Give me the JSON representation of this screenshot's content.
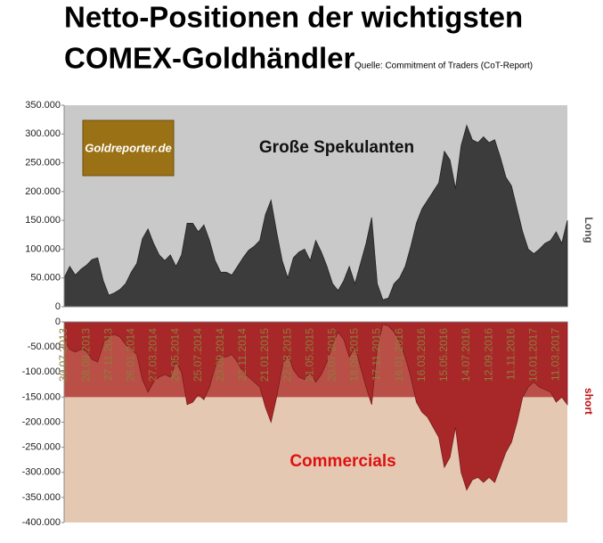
{
  "title": [
    "Netto-Positionen der wichtigsten",
    "COMEX-Goldhändler"
  ],
  "source": "Quelle: Commitment of Traders (CoT-Report)",
  "logo": "Goldreporter.de",
  "chart_data": [
    {
      "type": "area",
      "annotation": "Große Spekulanten",
      "y_label": "Long",
      "color": "#3c3c3c",
      "background": "#c9c9c9",
      "ylim": [
        0,
        350000
      ],
      "yticks": [
        {
          "value": 0,
          "label": "0"
        },
        {
          "value": 50000,
          "label": "50.000"
        },
        {
          "value": 100000,
          "label": "100.000"
        },
        {
          "value": 150000,
          "label": "150.000"
        },
        {
          "value": 200000,
          "label": "200.000"
        },
        {
          "value": 250000,
          "label": "250.000"
        },
        {
          "value": 300000,
          "label": "300.000"
        },
        {
          "value": 350000,
          "label": "350.000"
        }
      ],
      "values": [
        50000,
        70000,
        55000,
        65000,
        72000,
        82000,
        85000,
        45000,
        20000,
        24000,
        30000,
        40000,
        60000,
        75000,
        118000,
        135000,
        110000,
        90000,
        80000,
        90000,
        70000,
        90000,
        145000,
        145000,
        130000,
        142000,
        115000,
        80000,
        60000,
        60000,
        55000,
        70000,
        85000,
        98000,
        105000,
        115000,
        160000,
        185000,
        130000,
        80000,
        50000,
        85000,
        95000,
        100000,
        80000,
        115000,
        95000,
        70000,
        40000,
        28000,
        45000,
        70000,
        40000,
        75000,
        110000,
        155000,
        40000,
        12000,
        15000,
        40000,
        50000,
        70000,
        105000,
        145000,
        170000,
        185000,
        200000,
        215000,
        270000,
        255000,
        205000,
        280000,
        315000,
        290000,
        285000,
        295000,
        285000,
        290000,
        260000,
        225000,
        210000,
        170000,
        130000,
        100000,
        92000,
        100000,
        110000,
        115000,
        130000,
        110000,
        150000
      ]
    },
    {
      "type": "area",
      "annotation": "Commercials",
      "y_label": "short",
      "color": "#a8282a",
      "background": "#e4c8b2",
      "ylim": [
        -400000,
        0
      ],
      "yticks": [
        {
          "value": -400000,
          "label": "-400.000"
        },
        {
          "value": -350000,
          "label": "-350.000"
        },
        {
          "value": -300000,
          "label": "-300.000"
        },
        {
          "value": -250000,
          "label": "-250.000"
        },
        {
          "value": -200000,
          "label": "-200.000"
        },
        {
          "value": -150000,
          "label": "-150.000"
        },
        {
          "value": -100000,
          "label": "-100.000"
        },
        {
          "value": -50000,
          "label": "-50.000"
        },
        0
      ],
      "categories": [
        "30.07.2013",
        null,
        null,
        null,
        "28.09.2013",
        null,
        null,
        null,
        "27.11.2013",
        null,
        null,
        null,
        "26.01.2014",
        null,
        null,
        null,
        "27.03.2014",
        null,
        null,
        null,
        "26.05.2014",
        null,
        null,
        null,
        "25.07.2014",
        null,
        null,
        null,
        "23.09.2014",
        null,
        null,
        null,
        "22.11.2014",
        null,
        null,
        null,
        "21.01.2015",
        null,
        null,
        null,
        "22.03.2015",
        null,
        null,
        null,
        "21.05.2015",
        null,
        null,
        null,
        "20.07.2015",
        null,
        null,
        null,
        "18.09.2015",
        null,
        null,
        null,
        "17.11.2015",
        null,
        null,
        null,
        "16.01.2016",
        null,
        null,
        null,
        "16.03.2016",
        null,
        null,
        null,
        "15.05.2016",
        null,
        null,
        null,
        "14.07.2016",
        null,
        null,
        null,
        "12.09.2016",
        null,
        null,
        null,
        "11.11.2016",
        null,
        null,
        null,
        "10.01.2017",
        null,
        null,
        null,
        "11.03.2017",
        null,
        null
      ],
      "values": [
        -35000,
        -55000,
        -60000,
        -55000,
        -58000,
        -75000,
        -80000,
        -45000,
        -30000,
        -25000,
        -30000,
        -45000,
        -55000,
        -65000,
        -115000,
        -140000,
        -120000,
        -110000,
        -105000,
        -110000,
        -80000,
        -100000,
        -165000,
        -160000,
        -145000,
        -155000,
        -130000,
        -90000,
        -70000,
        -70000,
        -65000,
        -80000,
        -100000,
        -110000,
        -120000,
        -130000,
        -170000,
        -200000,
        -150000,
        -90000,
        -65000,
        -95000,
        -110000,
        -115000,
        -100000,
        -120000,
        -105000,
        -80000,
        -45000,
        -20000,
        -35000,
        -70000,
        -50000,
        -90000,
        -130000,
        -165000,
        -50000,
        -5000,
        -8000,
        -20000,
        -40000,
        -70000,
        -110000,
        -160000,
        -180000,
        -190000,
        -210000,
        -230000,
        -290000,
        -270000,
        -210000,
        -300000,
        -335000,
        -315000,
        -310000,
        -320000,
        -310000,
        -320000,
        -290000,
        -260000,
        -240000,
        -200000,
        -150000,
        -130000,
        -120000,
        -130000,
        -135000,
        -140000,
        -160000,
        -150000,
        -165000
      ]
    }
  ]
}
